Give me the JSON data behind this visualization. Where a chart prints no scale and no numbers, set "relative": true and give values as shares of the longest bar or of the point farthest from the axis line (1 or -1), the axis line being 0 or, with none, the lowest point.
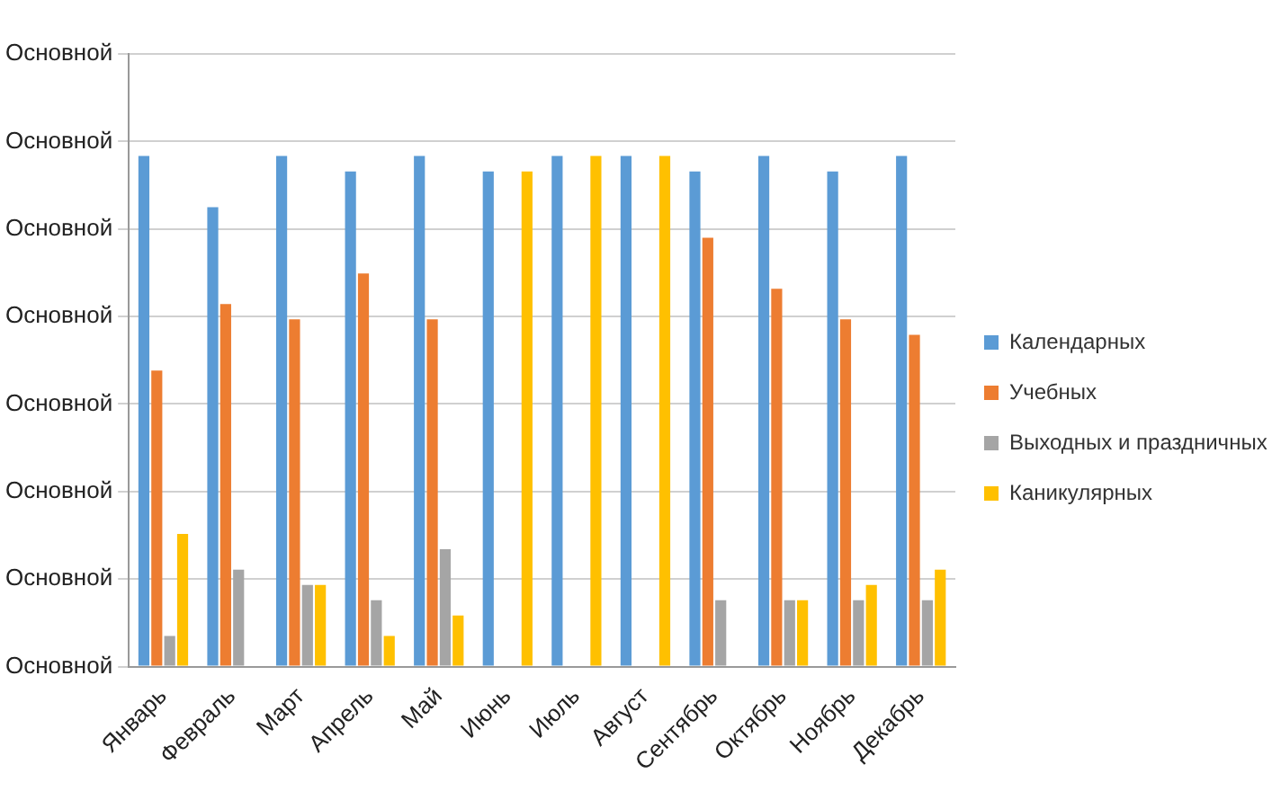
{
  "chart_data": {
    "type": "bar",
    "relative": true,
    "categories": [
      "Январь",
      "Февраль",
      "Март",
      "Апрель",
      "Май",
      "Июнь",
      "Июль",
      "Август",
      "Сентябрь",
      "Октябрь",
      "Ноябрь",
      "Декабрь"
    ],
    "series": [
      {
        "name": "Календарных",
        "color": "#5b9bd5",
        "values": [
          1,
          0.9,
          1,
          0.97,
          1,
          0.97,
          1,
          1,
          0.97,
          1,
          0.97,
          1
        ]
      },
      {
        "name": "Учебных",
        "color": "#ed7d31",
        "values": [
          0.58,
          0.71,
          0.68,
          0.77,
          0.68,
          0,
          0,
          0,
          0.84,
          0.74,
          0.68,
          0.65
        ]
      },
      {
        "name": "Выходных и праздничных",
        "color": "#a5a5a5",
        "values": [
          0.06,
          0.19,
          0.16,
          0.13,
          0.23,
          0,
          0,
          0,
          0.13,
          0.13,
          0.13,
          0.13
        ]
      },
      {
        "name": "Каникулярных",
        "color": "#ffc000",
        "values": [
          0.26,
          0,
          0.16,
          0.06,
          0.1,
          0.97,
          1,
          1,
          0,
          0.13,
          0.16,
          0.19
        ]
      }
    ],
    "annotations": [
      "Основной",
      "Основной",
      "Основной",
      "Основной",
      "Основной",
      "Основной",
      "Основной",
      "Основной"
    ],
    "grid": "y",
    "legend": "right"
  }
}
